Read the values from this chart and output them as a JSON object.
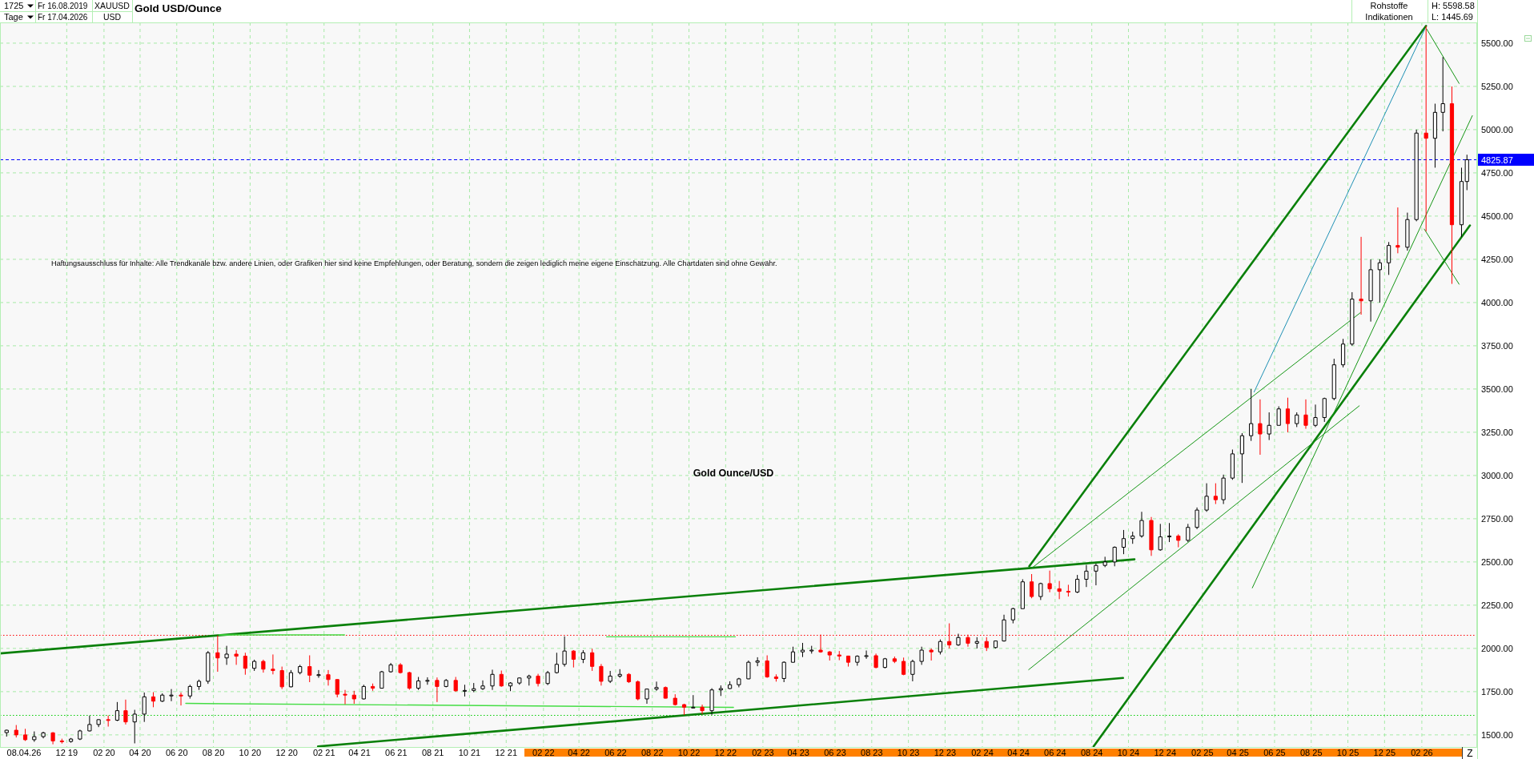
{
  "chart_data": {
    "type": "candlestick",
    "title": "Gold USD/Ounce",
    "annotations": [
      "1725",
      "Tage",
      "Fr 16.08.2019",
      "Fr 17.04.2026",
      "XAUUSD",
      "USD",
      "Rohstoffe",
      "Indikationen",
      "H: 5598.58",
      "L: 1445.69",
      "Haftungsausschluss für Inhalte: Alle Trendkanäle bzw. andere Linien, oder Grafiken hier sind keine Empfehlungen, oder Beratung, sondern die zeigen lediglich meine eigene Einschätzung. Alle Chartdaten sind ohne Gewähr.",
      "Gold Ounce/USD",
      "08.04.26",
      "Z"
    ],
    "x": [
      "2019-08-23",
      "2019-09-08",
      "2019-09-23",
      "2019-10-08",
      "2019-10-23",
      "2019-11-08",
      "2019-11-23",
      "2019-12-08",
      "2019-12-23",
      "2020-01-08",
      "2020-01-23",
      "2020-02-08",
      "2020-02-23",
      "2020-03-08",
      "2020-03-23",
      "2020-04-08",
      "2020-04-23",
      "2020-05-08",
      "2020-05-23",
      "2020-06-08",
      "2020-06-23",
      "2020-07-08",
      "2020-07-23",
      "2020-08-08",
      "2020-08-23",
      "2020-09-08",
      "2020-09-23",
      "2020-10-08",
      "2020-10-23",
      "2020-11-08",
      "2020-11-23",
      "2020-12-08",
      "2020-12-23",
      "2021-01-08",
      "2021-01-23",
      "2021-02-08",
      "2021-02-23",
      "2021-03-08",
      "2021-03-23",
      "2021-04-08",
      "2021-04-23",
      "2021-05-08",
      "2021-05-23",
      "2021-06-08",
      "2021-06-23",
      "2021-07-08",
      "2021-07-23",
      "2021-08-08",
      "2021-08-23",
      "2021-09-08",
      "2021-09-23",
      "2021-10-08",
      "2021-10-23",
      "2021-11-08",
      "2021-11-23",
      "2021-12-08",
      "2021-12-23",
      "2022-01-08",
      "2022-01-23",
      "2022-02-08",
      "2022-02-23",
      "2022-03-08",
      "2022-03-23",
      "2022-04-08",
      "2022-04-23",
      "2022-05-08",
      "2022-05-23",
      "2022-06-08",
      "2022-06-23",
      "2022-07-08",
      "2022-07-23",
      "2022-08-08",
      "2022-08-23",
      "2022-09-08",
      "2022-09-23",
      "2022-10-08",
      "2022-10-23",
      "2022-11-08",
      "2022-11-23",
      "2022-12-08",
      "2022-12-23",
      "2023-01-08",
      "2023-01-23",
      "2023-02-08",
      "2023-02-23",
      "2023-03-08",
      "2023-03-23",
      "2023-04-08",
      "2023-04-23",
      "2023-05-08",
      "2023-05-23",
      "2023-06-08",
      "2023-06-23",
      "2023-07-08",
      "2023-07-23",
      "2023-08-08",
      "2023-08-23",
      "2023-09-08",
      "2023-09-23",
      "2023-10-08",
      "2023-10-23",
      "2023-11-08",
      "2023-11-23",
      "2023-12-08",
      "2023-12-23",
      "2024-01-08",
      "2024-01-23",
      "2024-02-08",
      "2024-02-23",
      "2024-03-08",
      "2024-03-23",
      "2024-04-08",
      "2024-04-23",
      "2024-05-08",
      "2024-05-23",
      "2024-06-08",
      "2024-06-23",
      "2024-07-08",
      "2024-07-23",
      "2024-08-08",
      "2024-08-23",
      "2024-09-08",
      "2024-09-23",
      "2024-10-08",
      "2024-10-23",
      "2024-11-08",
      "2024-11-23",
      "2024-12-08",
      "2024-12-23",
      "2025-01-08",
      "2025-01-23",
      "2025-02-08",
      "2025-02-23",
      "2025-03-08",
      "2025-03-23",
      "2025-04-08",
      "2025-04-23",
      "2025-05-08",
      "2025-05-23",
      "2025-06-08",
      "2025-06-23",
      "2025-07-08",
      "2025-07-23",
      "2025-08-08",
      "2025-08-23",
      "2025-09-08",
      "2025-09-23",
      "2025-10-08",
      "2025-10-23",
      "2025-11-08",
      "2025-11-23",
      "2025-12-08",
      "2025-12-23",
      "2026-01-08",
      "2026-01-23",
      "2026-02-08",
      "2026-02-23",
      "2026-03-08",
      "2026-03-23",
      "2026-04-08",
      "2026-04-17"
    ],
    "ohlc": [
      [
        1513,
        1530,
        1490,
        1527
      ],
      [
        1527,
        1557,
        1485,
        1500
      ],
      [
        1500,
        1535,
        1465,
        1472
      ],
      [
        1472,
        1520,
        1460,
        1490
      ],
      [
        1490,
        1518,
        1480,
        1512
      ],
      [
        1512,
        1516,
        1445.69,
        1465
      ],
      [
        1465,
        1478,
        1450,
        1462
      ],
      [
        1462,
        1482,
        1455,
        1476
      ],
      [
        1476,
        1530,
        1470,
        1523
      ],
      [
        1523,
        1611,
        1520,
        1560
      ],
      [
        1560,
        1590,
        1545,
        1588
      ],
      [
        1588,
        1612,
        1548,
        1585
      ],
      [
        1585,
        1690,
        1580,
        1640
      ],
      [
        1640,
        1704,
        1560,
        1575
      ],
      [
        1575,
        1645,
        1451,
        1620
      ],
      [
        1620,
        1745,
        1575,
        1720
      ],
      [
        1720,
        1747,
        1660,
        1695
      ],
      [
        1695,
        1740,
        1690,
        1730
      ],
      [
        1730,
        1765,
        1695,
        1730
      ],
      [
        1730,
        1745,
        1670,
        1725
      ],
      [
        1725,
        1790,
        1710,
        1780
      ],
      [
        1780,
        1820,
        1760,
        1810
      ],
      [
        1810,
        1985,
        1795,
        1975
      ],
      [
        1975,
        2075,
        1865,
        1945
      ],
      [
        1945,
        2015,
        1905,
        1967
      ],
      [
        1967,
        1990,
        1905,
        1955
      ],
      [
        1955,
        1975,
        1848,
        1885
      ],
      [
        1885,
        1935,
        1870,
        1925
      ],
      [
        1925,
        1935,
        1860,
        1880
      ],
      [
        1880,
        1965,
        1850,
        1872
      ],
      [
        1872,
        1895,
        1765,
        1778
      ],
      [
        1778,
        1875,
        1775,
        1860
      ],
      [
        1860,
        1905,
        1850,
        1895
      ],
      [
        1895,
        1960,
        1805,
        1845
      ],
      [
        1845,
        1875,
        1830,
        1848
      ],
      [
        1848,
        1875,
        1785,
        1820
      ],
      [
        1820,
        1822,
        1717,
        1735
      ],
      [
        1735,
        1760,
        1677,
        1730
      ],
      [
        1730,
        1755,
        1680,
        1708
      ],
      [
        1708,
        1790,
        1705,
        1780
      ],
      [
        1780,
        1797,
        1755,
        1770
      ],
      [
        1770,
        1870,
        1768,
        1865
      ],
      [
        1865,
        1916,
        1860,
        1905
      ],
      [
        1905,
        1915,
        1855,
        1860
      ],
      [
        1860,
        1865,
        1761,
        1770
      ],
      [
        1770,
        1835,
        1760,
        1812
      ],
      [
        1812,
        1833,
        1790,
        1815
      ],
      [
        1815,
        1832,
        1690,
        1780
      ],
      [
        1780,
        1823,
        1775,
        1815
      ],
      [
        1815,
        1835,
        1750,
        1755
      ],
      [
        1755,
        1790,
        1722,
        1757
      ],
      [
        1757,
        1800,
        1747,
        1767
      ],
      [
        1767,
        1815,
        1760,
        1783
      ],
      [
        1783,
        1877,
        1760,
        1850
      ],
      [
        1850,
        1872,
        1778,
        1783
      ],
      [
        1783,
        1805,
        1753,
        1800
      ],
      [
        1800,
        1832,
        1790,
        1829
      ],
      [
        1829,
        1848,
        1785,
        1840
      ],
      [
        1840,
        1853,
        1780,
        1797
      ],
      [
        1797,
        1870,
        1788,
        1860
      ],
      [
        1860,
        1975,
        1855,
        1908
      ],
      [
        1908,
        2070,
        1895,
        1985
      ],
      [
        1985,
        1990,
        1890,
        1937
      ],
      [
        1937,
        1990,
        1915,
        1975
      ],
      [
        1975,
        1998,
        1870,
        1896
      ],
      [
        1896,
        1910,
        1785,
        1810
      ],
      [
        1810,
        1870,
        1800,
        1840
      ],
      [
        1840,
        1880,
        1830,
        1850
      ],
      [
        1850,
        1857,
        1800,
        1807
      ],
      [
        1807,
        1815,
        1700,
        1708
      ],
      [
        1708,
        1766,
        1680,
        1765
      ],
      [
        1765,
        1808,
        1755,
        1774
      ],
      [
        1774,
        1780,
        1710,
        1712
      ],
      [
        1712,
        1735,
        1670,
        1675
      ],
      [
        1675,
        1680,
        1615,
        1660
      ],
      [
        1660,
        1730,
        1655,
        1660
      ],
      [
        1660,
        1675,
        1620,
        1640
      ],
      [
        1640,
        1770,
        1616,
        1760
      ],
      [
        1760,
        1786,
        1725,
        1768
      ],
      [
        1768,
        1810,
        1765,
        1790
      ],
      [
        1790,
        1830,
        1775,
        1824
      ],
      [
        1824,
        1930,
        1822,
        1920
      ],
      [
        1920,
        1949,
        1897,
        1928
      ],
      [
        1928,
        1960,
        1830,
        1835
      ],
      [
        1835,
        1850,
        1808,
        1826
      ],
      [
        1826,
        1925,
        1805,
        1920
      ],
      [
        1920,
        2010,
        1918,
        1980
      ],
      [
        1980,
        2032,
        1950,
        1990
      ],
      [
        1990,
        2015,
        1970,
        1990
      ],
      [
        1990,
        2080,
        1975,
        1980
      ],
      [
        1980,
        1985,
        1930,
        1962
      ],
      [
        1962,
        1985,
        1932,
        1956
      ],
      [
        1956,
        1958,
        1895,
        1920
      ],
      [
        1920,
        1960,
        1900,
        1955
      ],
      [
        1955,
        1988,
        1940,
        1958
      ],
      [
        1958,
        1970,
        1885,
        1890
      ],
      [
        1890,
        1945,
        1885,
        1940
      ],
      [
        1940,
        1953,
        1915,
        1925
      ],
      [
        1925,
        1947,
        1845,
        1850
      ],
      [
        1850,
        1935,
        1810,
        1925
      ],
      [
        1925,
        2010,
        1905,
        1990
      ],
      [
        1990,
        2000,
        1930,
        1980
      ],
      [
        1980,
        2052,
        1965,
        2040
      ],
      [
        2040,
        2145,
        2000,
        2020
      ],
      [
        2020,
        2085,
        2015,
        2063
      ],
      [
        2063,
        2080,
        2010,
        2030
      ],
      [
        2030,
        2065,
        2000,
        2040
      ],
      [
        2040,
        2065,
        1985,
        2005
      ],
      [
        2005,
        2045,
        2000,
        2043
      ],
      [
        2043,
        2195,
        2040,
        2165
      ],
      [
        2165,
        2235,
        2145,
        2230
      ],
      [
        2230,
        2400,
        2230,
        2385
      ],
      [
        2385,
        2430,
        2290,
        2300
      ],
      [
        2300,
        2380,
        2280,
        2375
      ],
      [
        2375,
        2450,
        2325,
        2345
      ],
      [
        2345,
        2390,
        2285,
        2330
      ],
      [
        2330,
        2368,
        2300,
        2326
      ],
      [
        2326,
        2425,
        2320,
        2400
      ],
      [
        2400,
        2483,
        2355,
        2447
      ],
      [
        2447,
        2490,
        2365,
        2480
      ],
      [
        2480,
        2530,
        2470,
        2500
      ],
      [
        2500,
        2590,
        2475,
        2585
      ],
      [
        2585,
        2685,
        2545,
        2635
      ],
      [
        2635,
        2675,
        2605,
        2650
      ],
      [
        2650,
        2790,
        2640,
        2740
      ],
      [
        2740,
        2760,
        2535,
        2570
      ],
      [
        2570,
        2720,
        2565,
        2645
      ],
      [
        2645,
        2725,
        2615,
        2650
      ],
      [
        2650,
        2660,
        2585,
        2625
      ],
      [
        2625,
        2720,
        2615,
        2700
      ],
      [
        2700,
        2815,
        2690,
        2800
      ],
      [
        2800,
        2955,
        2790,
        2880
      ],
      [
        2880,
        2955,
        2835,
        2860
      ],
      [
        2860,
        3005,
        2835,
        2985
      ],
      [
        2985,
        3150,
        2975,
        3125
      ],
      [
        3125,
        3245,
        2957,
        3230
      ],
      [
        3230,
        3500,
        3200,
        3300
      ],
      [
        3300,
        3440,
        3120,
        3240
      ],
      [
        3240,
        3365,
        3205,
        3290
      ],
      [
        3290,
        3400,
        3290,
        3385
      ],
      [
        3385,
        3450,
        3250,
        3300
      ],
      [
        3300,
        3365,
        3280,
        3350
      ],
      [
        3350,
        3440,
        3270,
        3290
      ],
      [
        3290,
        3410,
        3280,
        3335
      ],
      [
        3335,
        3450,
        3310,
        3445
      ],
      [
        3445,
        3675,
        3435,
        3640
      ],
      [
        3640,
        3790,
        3625,
        3760
      ],
      [
        3760,
        4060,
        3750,
        4020
      ],
      [
        4020,
        4380,
        3930,
        4010
      ],
      [
        4010,
        4250,
        3890,
        4190
      ],
      [
        4190,
        4250,
        4000,
        4230
      ],
      [
        4230,
        4350,
        4160,
        4330
      ],
      [
        4330,
        4550,
        4285,
        4320
      ],
      [
        4320,
        4520,
        4300,
        4480
      ],
      [
        4480,
        5000,
        4470,
        4980
      ],
      [
        4980,
        5598.58,
        4412,
        4950
      ],
      [
        4950,
        5150,
        4780,
        5100
      ],
      [
        5100,
        5420,
        4990,
        5150
      ],
      [
        5150,
        5250,
        4108,
        4450
      ],
      [
        4450,
        4780,
        4380,
        4700
      ],
      [
        4700,
        4855,
        4650,
        4825.87
      ]
    ],
    "colors": [
      "#000000",
      "#ff0000",
      "#ff0000",
      "#000000",
      "#000000",
      "#ff0000",
      "#ff0000",
      "#000000",
      "#000000",
      "#000000",
      "#000000",
      "#ff0000",
      "#000000",
      "#ff0000",
      "#000000",
      "#000000",
      "#ff0000",
      "#000000",
      "#000000",
      "#ff0000",
      "#000000",
      "#000000",
      "#000000",
      "#ff0000",
      "#000000",
      "#ff0000",
      "#ff0000",
      "#000000",
      "#ff0000",
      "#ff0000",
      "#ff0000",
      "#000000",
      "#000000",
      "#ff0000",
      "#000000",
      "#ff0000",
      "#ff0000",
      "#ff0000",
      "#ff0000",
      "#000000",
      "#ff0000",
      "#000000",
      "#000000",
      "#ff0000",
      "#ff0000",
      "#000000",
      "#000000",
      "#ff0000",
      "#000000",
      "#ff0000",
      "#000000",
      "#000000",
      "#000000",
      "#000000",
      "#ff0000",
      "#000000",
      "#000000",
      "#000000",
      "#ff0000",
      "#000000",
      "#000000",
      "#000000",
      "#ff0000",
      "#000000",
      "#ff0000",
      "#ff0000",
      "#000000",
      "#000000",
      "#ff0000",
      "#ff0000",
      "#000000",
      "#000000",
      "#ff0000",
      "#ff0000",
      "#ff0000",
      "#000000",
      "#ff0000",
      "#000000",
      "#000000",
      "#000000",
      "#000000",
      "#000000",
      "#000000",
      "#ff0000",
      "#ff0000",
      "#000000",
      "#000000",
      "#000000",
      "#000000",
      "#ff0000",
      "#ff0000",
      "#ff0000",
      "#ff0000",
      "#000000",
      "#000000",
      "#ff0000",
      "#000000",
      "#ff0000",
      "#ff0000",
      "#000000",
      "#000000",
      "#ff0000",
      "#000000",
      "#ff0000",
      "#000000",
      "#ff0000",
      "#000000",
      "#ff0000",
      "#000000",
      "#000000",
      "#000000",
      "#000000",
      "#ff0000",
      "#000000",
      "#ff0000",
      "#ff0000",
      "#ff0000",
      "#000000",
      "#000000",
      "#000000",
      "#000000",
      "#000000",
      "#000000",
      "#000000",
      "#000000",
      "#ff0000",
      "#000000",
      "#000000",
      "#ff0000",
      "#000000",
      "#000000",
      "#000000",
      "#ff0000",
      "#000000",
      "#000000",
      "#000000",
      "#000000",
      "#ff0000",
      "#000000",
      "#000000",
      "#ff0000",
      "#000000",
      "#ff0000",
      "#000000",
      "#000000",
      "#000000",
      "#000000",
      "#000000",
      "#ff0000",
      "#000000",
      "#000000",
      "#000000",
      "#ff0000",
      "#000000",
      "#000000",
      "#ff0000",
      "#000000",
      "#000000",
      "#ff0000",
      "#000000",
      "#000000"
    ],
    "series": [
      {
        "type": "line",
        "x": [
          "2019-08-12",
          "2024-10-11"
        ],
        "values": [
          1971,
          2515
        ],
        "color": "#0a800a"
      },
      {
        "type": "line",
        "x": [
          "2021-01-22",
          "2024-09-22"
        ],
        "values": [
          1433,
          1829
        ],
        "color": "#0a800a"
      },
      {
        "type": "line",
        "x": [
          "2024-04-19",
          "2026-02-08"
        ],
        "values": [
          2475,
          5600
        ],
        "color": "#0a800a"
      },
      {
        "type": "line",
        "x": [
          "2024-08-04",
          "2026-04-22"
        ],
        "values": [
          1433,
          4446
        ],
        "color": "#0a800a"
      },
      {
        "type": "line",
        "x": [
          "2025-04-28",
          "2026-02-06"
        ],
        "values": [
          3483,
          5582
        ],
        "color": "#1e90b4"
      },
      {
        "type": "line",
        "x": [
          "2024-04-23",
          "2025-10-22"
        ],
        "values": [
          2464,
          3942
        ],
        "color": "#159615"
      },
      {
        "type": "line",
        "x": [
          "2024-04-18",
          "2025-10-20"
        ],
        "values": [
          1877,
          3403
        ],
        "color": "#159615"
      },
      {
        "type": "line",
        "x": [
          "2025-04-25",
          "2026-04-26"
        ],
        "values": [
          2350,
          5081
        ],
        "color": "#159615"
      },
      {
        "type": "line",
        "x": [
          "2026-02-09",
          "2026-04-04"
        ],
        "values": [
          5582,
          5267
        ],
        "color": "#159615"
      },
      {
        "type": "line",
        "x": [
          "2026-02-05",
          "2026-04-04"
        ],
        "values": [
          4425,
          4106
        ],
        "color": "#159615"
      },
      {
        "type": "line",
        "x": [
          "2020-08-10",
          "2021-03-07"
        ],
        "values": [
          2078,
          2078
        ],
        "color": "#44dd44"
      },
      {
        "type": "line",
        "x": [
          "2022-05-17",
          "2022-12-17"
        ],
        "values": [
          2067,
          2067
        ],
        "color": "#44dd44"
      },
      {
        "type": "line",
        "x": [
          "2020-06-16",
          "2022-12-14"
        ],
        "values": [
          1682,
          1659
        ],
        "color": "#44dd44"
      }
    ],
    "ref_lines": [
      {
        "axis": "y",
        "value": 4825.87,
        "label": "4825.87",
        "color": "#0000ff",
        "line_style": "dashed"
      },
      {
        "axis": "y",
        "value": 2076,
        "color": "#ff0000",
        "line_style": "dotted"
      },
      {
        "axis": "y",
        "value": 1613,
        "color": "#00cc00",
        "line_style": "dotted"
      }
    ],
    "xlim": [
      "2019-08-12",
      "2026-05-04"
    ],
    "xticks": [
      {
        "value": "2019-12-01",
        "label": "12 19"
      },
      {
        "value": "2020-02-01",
        "label": "02 20"
      },
      {
        "value": "2020-04-01",
        "label": "04 20"
      },
      {
        "value": "2020-06-01",
        "label": "06 20"
      },
      {
        "value": "2020-08-01",
        "label": "08 20"
      },
      {
        "value": "2020-10-01",
        "label": "10 20"
      },
      {
        "value": "2020-12-01",
        "label": "12 20"
      },
      {
        "value": "2021-02-01",
        "label": "02 21"
      },
      {
        "value": "2021-04-01",
        "label": "04 21"
      },
      {
        "value": "2021-06-01",
        "label": "06 21"
      },
      {
        "value": "2021-08-01",
        "label": "08 21"
      },
      {
        "value": "2021-10-01",
        "label": "10 21"
      },
      {
        "value": "2021-12-01",
        "label": "12 21"
      },
      {
        "value": "2022-02-01",
        "label": "02 22"
      },
      {
        "value": "2022-04-01",
        "label": "04 22"
      },
      {
        "value": "2022-06-01",
        "label": "06 22"
      },
      {
        "value": "2022-08-01",
        "label": "08 22"
      },
      {
        "value": "2022-10-01",
        "label": "10 22"
      },
      {
        "value": "2022-12-01",
        "label": "12 22"
      },
      {
        "value": "2023-02-01",
        "label": "02 23"
      },
      {
        "value": "2023-04-01",
        "label": "04 23"
      },
      {
        "value": "2023-06-01",
        "label": "06 23"
      },
      {
        "value": "2023-08-01",
        "label": "08 23"
      },
      {
        "value": "2023-10-01",
        "label": "10 23"
      },
      {
        "value": "2023-12-01",
        "label": "12 23"
      },
      {
        "value": "2024-02-01",
        "label": "02 24"
      },
      {
        "value": "2024-04-01",
        "label": "04 24"
      },
      {
        "value": "2024-06-01",
        "label": "06 24"
      },
      {
        "value": "2024-08-01",
        "label": "08 24"
      },
      {
        "value": "2024-10-01",
        "label": "10 24"
      },
      {
        "value": "2024-12-01",
        "label": "12 24"
      },
      {
        "value": "2025-02-01",
        "label": "02 25"
      },
      {
        "value": "2025-04-01",
        "label": "04 25"
      },
      {
        "value": "2025-06-01",
        "label": "06 25"
      },
      {
        "value": "2025-08-01",
        "label": "08 25"
      },
      {
        "value": "2025-10-01",
        "label": "10 25"
      },
      {
        "value": "2025-12-01",
        "label": "12 25"
      },
      {
        "value": "2026-02-01",
        "label": "02 26"
      }
    ],
    "ylim": [
      1430,
      5620
    ],
    "yticks": [
      {
        "value": 1500,
        "label": "1500.00"
      },
      {
        "value": 1750,
        "label": "1750.00"
      },
      {
        "value": 2000,
        "label": "2000.00"
      },
      {
        "value": 2250,
        "label": "2250.00"
      },
      {
        "value": 2500,
        "label": "2500.00"
      },
      {
        "value": 2750,
        "label": "2750.00"
      },
      {
        "value": 3000,
        "label": "3000.00"
      },
      {
        "value": 3250,
        "label": "3250.00"
      },
      {
        "value": 3500,
        "label": "3500.00"
      },
      {
        "value": 3750,
        "label": "3750.00"
      },
      {
        "value": 4000,
        "label": "4000.00"
      },
      {
        "value": 4250,
        "label": "4250.00"
      },
      {
        "value": 4500,
        "label": "4500.00"
      },
      {
        "value": 4750,
        "label": "4750.00"
      },
      {
        "value": 5000,
        "label": "5000.00"
      },
      {
        "value": 5250,
        "label": "5250.00"
      },
      {
        "value": 5500,
        "label": "5500.00"
      }
    ],
    "grid": true
  }
}
